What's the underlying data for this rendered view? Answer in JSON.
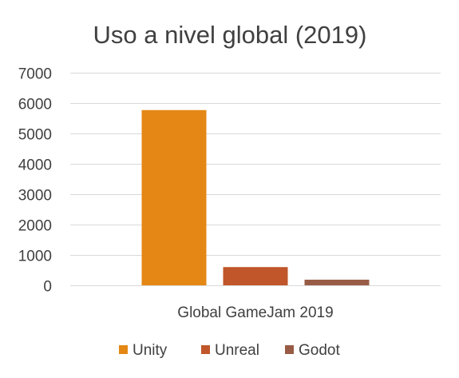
{
  "chart_data": {
    "type": "bar",
    "title": "Uso a nivel global (2019)",
    "categories": [
      "Global GameJam 2019"
    ],
    "series": [
      {
        "name": "Unity",
        "values": [
          5770
        ],
        "color": "#E48714"
      },
      {
        "name": "Unreal",
        "values": [
          600
        ],
        "color": "#C0562A"
      },
      {
        "name": "Godot",
        "values": [
          185
        ],
        "color": "#985B45"
      }
    ],
    "yticks": [
      "0",
      "1000",
      "2000",
      "3000",
      "4000",
      "5000",
      "6000",
      "7000"
    ],
    "ylim": [
      0,
      7000
    ],
    "grid": true,
    "legend_position": "bottom"
  }
}
